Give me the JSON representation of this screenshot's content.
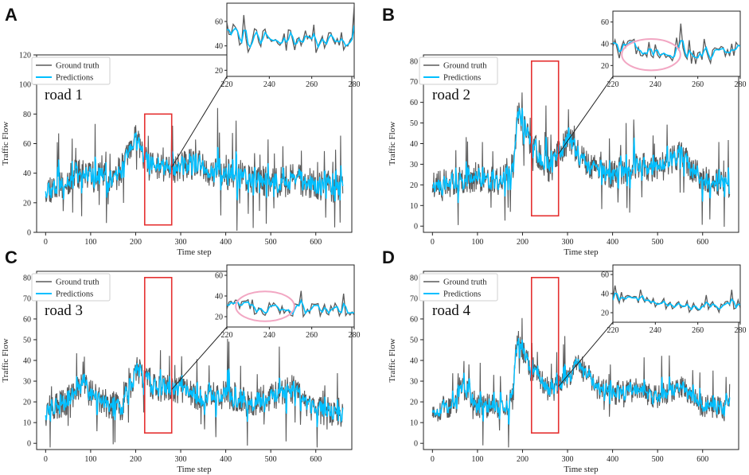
{
  "colors": {
    "ground_truth": "#5a5a5a",
    "predictions": "#00bfff",
    "highlight": "#e53030",
    "ellipse": "#f2a7c3"
  },
  "chart_data": [
    {
      "type": "line",
      "panel": "A",
      "road_label": "road 1",
      "xlabel": "Time step",
      "ylabel": "Traffic Flow",
      "xlim": [
        -20,
        680
      ],
      "ylim": [
        0,
        120
      ],
      "xticks": [
        0,
        100,
        200,
        300,
        400,
        500,
        600
      ],
      "yticks": [
        0,
        20,
        40,
        60,
        80,
        100,
        120
      ],
      "legend": [
        "Ground truth",
        "Predictions"
      ],
      "highlight_box": {
        "x0": 220,
        "x1": 280,
        "y0": 5,
        "y1": 80
      },
      "profile": [
        [
          0,
          30
        ],
        [
          40,
          32
        ],
        [
          70,
          40
        ],
        [
          100,
          38
        ],
        [
          150,
          36
        ],
        [
          175,
          45
        ],
        [
          200,
          62
        ],
        [
          230,
          45
        ],
        [
          280,
          44
        ],
        [
          330,
          46
        ],
        [
          380,
          40
        ],
        [
          450,
          38
        ],
        [
          500,
          33
        ],
        [
          560,
          36
        ],
        [
          600,
          32
        ],
        [
          660,
          30
        ]
      ],
      "amplitude": 9,
      "seed": 11,
      "inset": {
        "xlim": [
          220,
          280
        ],
        "ylim": [
          15,
          75
        ],
        "xticks": [
          220,
          240,
          260,
          280
        ],
        "yticks": [
          20,
          40,
          60
        ],
        "ellipse": false
      }
    },
    {
      "type": "line",
      "panel": "B",
      "road_label": "road 2",
      "xlabel": "Time step",
      "ylabel": "Traffic Flow",
      "xlim": [
        -20,
        680
      ],
      "ylim": [
        -3,
        83
      ],
      "xticks": [
        0,
        100,
        200,
        300,
        400,
        500,
        600
      ],
      "yticks": [
        0,
        10,
        20,
        30,
        40,
        50,
        60,
        70,
        80
      ],
      "legend": [
        "Ground truth",
        "Predictions"
      ],
      "highlight_box": {
        "x0": 220,
        "x1": 280,
        "y0": 5,
        "y1": 80
      },
      "profile": [
        [
          0,
          20
        ],
        [
          60,
          22
        ],
        [
          100,
          24
        ],
        [
          150,
          22
        ],
        [
          180,
          30
        ],
        [
          190,
          55
        ],
        [
          220,
          40
        ],
        [
          260,
          28
        ],
        [
          300,
          42
        ],
        [
          340,
          30
        ],
        [
          400,
          25
        ],
        [
          450,
          30
        ],
        [
          500,
          28
        ],
        [
          550,
          35
        ],
        [
          600,
          22
        ],
        [
          660,
          20
        ]
      ],
      "amplitude": 6,
      "seed": 23,
      "inset": {
        "xlim": [
          220,
          280
        ],
        "ylim": [
          10,
          70
        ],
        "xticks": [
          220,
          240,
          260,
          280
        ],
        "yticks": [
          20,
          40,
          60
        ],
        "ellipse": true
      }
    },
    {
      "type": "line",
      "panel": "C",
      "road_label": "road 3",
      "xlabel": "Time step",
      "ylabel": "Traffic Flow",
      "xlim": [
        -20,
        680
      ],
      "ylim": [
        -3,
        83
      ],
      "xticks": [
        0,
        100,
        200,
        300,
        400,
        500,
        600
      ],
      "yticks": [
        0,
        10,
        20,
        30,
        40,
        50,
        60,
        70,
        80
      ],
      "legend": [
        "Ground truth",
        "Predictions"
      ],
      "highlight_box": {
        "x0": 220,
        "x1": 280,
        "y0": 5,
        "y1": 80
      },
      "profile": [
        [
          0,
          15
        ],
        [
          60,
          22
        ],
        [
          80,
          28
        ],
        [
          120,
          20
        ],
        [
          170,
          18
        ],
        [
          200,
          35
        ],
        [
          240,
          28
        ],
        [
          300,
          25
        ],
        [
          350,
          22
        ],
        [
          400,
          24
        ],
        [
          450,
          20
        ],
        [
          500,
          22
        ],
        [
          550,
          26
        ],
        [
          600,
          16
        ],
        [
          660,
          15
        ]
      ],
      "amplitude": 6,
      "seed": 37,
      "inset": {
        "xlim": [
          220,
          280
        ],
        "ylim": [
          10,
          70
        ],
        "xticks": [
          220,
          240,
          260,
          280
        ],
        "yticks": [
          20,
          40,
          60
        ],
        "ellipse": true
      }
    },
    {
      "type": "line",
      "panel": "D",
      "road_label": "road 4",
      "xlabel": "Time step",
      "ylabel": "Traffic Flow",
      "xlim": [
        -20,
        680
      ],
      "ylim": [
        -3,
        83
      ],
      "xticks": [
        0,
        100,
        200,
        300,
        400,
        500,
        600
      ],
      "yticks": [
        0,
        10,
        20,
        30,
        40,
        50,
        60,
        70,
        80
      ],
      "legend": [
        "Ground truth",
        "Predictions"
      ],
      "highlight_box": {
        "x0": 220,
        "x1": 280,
        "y0": 5,
        "y1": 80
      },
      "profile": [
        [
          0,
          16
        ],
        [
          50,
          18
        ],
        [
          70,
          28
        ],
        [
          100,
          18
        ],
        [
          170,
          18
        ],
        [
          190,
          50
        ],
        [
          220,
          35
        ],
        [
          260,
          25
        ],
        [
          300,
          30
        ],
        [
          320,
          40
        ],
        [
          360,
          28
        ],
        [
          400,
          24
        ],
        [
          450,
          26
        ],
        [
          500,
          22
        ],
        [
          550,
          28
        ],
        [
          600,
          18
        ],
        [
          660,
          18
        ]
      ],
      "amplitude": 5,
      "seed": 53,
      "inset": {
        "xlim": [
          220,
          280
        ],
        "ylim": [
          10,
          70
        ],
        "xticks": [
          220,
          240,
          260,
          280
        ],
        "yticks": [
          20,
          40,
          60
        ],
        "ellipse": false
      }
    }
  ]
}
